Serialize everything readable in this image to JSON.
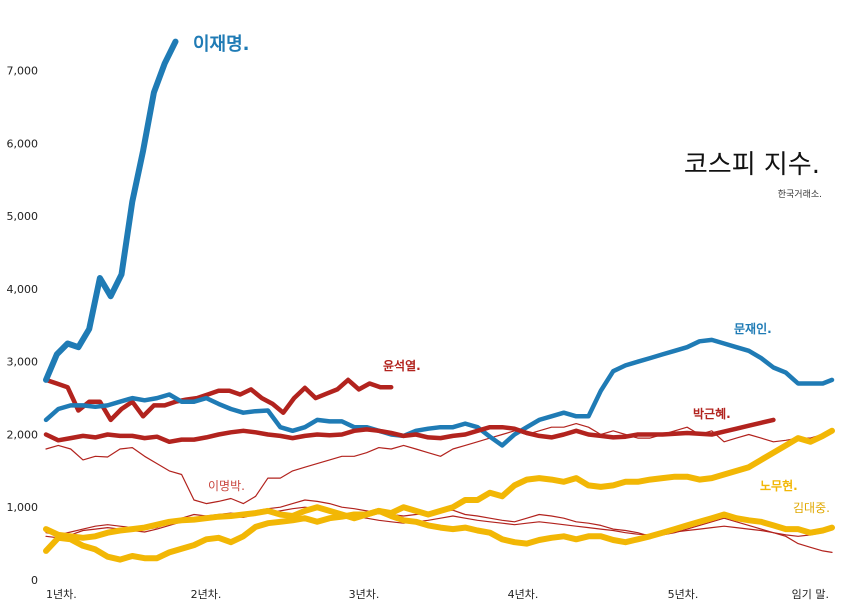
{
  "chart_data": {
    "type": "line",
    "title": "코스피 지수.",
    "subtitle": "한국거래소.",
    "xlabel": "",
    "ylabel": "",
    "ylim": [
      0,
      7500
    ],
    "yticks": [
      0,
      1000,
      2000,
      3000,
      4000,
      5000,
      6000,
      7000
    ],
    "ytick_labels": [
      "0",
      "1,000",
      "2,000",
      "3,000",
      "4,000",
      "5,000",
      "6,000",
      "7,000"
    ],
    "xlim": [
      1,
      6.1
    ],
    "xticks": [
      1,
      2,
      3,
      4,
      5,
      6
    ],
    "xtick_labels": [
      "1년차.",
      "2년차.",
      "3년차.",
      "4년차.",
      "5년차.",
      "임기 말."
    ],
    "grid": false,
    "colors": {
      "blue": "#1f7bb5",
      "red": "#b2231e",
      "yellow": "#f2b705"
    },
    "series": [
      {
        "name": "이재명.",
        "color": "#1f7bb5",
        "weight": "heavy",
        "x": [
          1.0,
          1.07,
          1.14,
          1.21,
          1.28,
          1.35,
          1.42,
          1.49,
          1.56,
          1.63,
          1.7,
          1.77,
          1.84
        ],
        "y": [
          2750,
          3100,
          3250,
          3200,
          3450,
          4150,
          3900,
          4200,
          5200,
          5900,
          6700,
          7100,
          7400
        ]
      },
      {
        "name": "윤석열.",
        "color": "#b2231e",
        "weight": "medium",
        "x": [
          1.0,
          1.07,
          1.14,
          1.21,
          1.28,
          1.35,
          1.42,
          1.49,
          1.56,
          1.63,
          1.7,
          1.77,
          1.84,
          1.91,
          1.98,
          2.05,
          2.12,
          2.19,
          2.26,
          2.33,
          2.4,
          2.47,
          2.54,
          2.61,
          2.68,
          2.75,
          2.82,
          2.89,
          2.96,
          3.03,
          3.1,
          3.17,
          3.24
        ],
        "y": [
          2750,
          2700,
          2650,
          2330,
          2450,
          2450,
          2200,
          2350,
          2450,
          2250,
          2400,
          2400,
          2450,
          2480,
          2500,
          2550,
          2600,
          2600,
          2550,
          2620,
          2500,
          2420,
          2300,
          2500,
          2640,
          2500,
          2560,
          2620,
          2750,
          2620,
          2700,
          2650,
          2650
        ]
      },
      {
        "name": "문재인.",
        "color": "#1f7bb5",
        "weight": "medium",
        "x": [
          1.0,
          1.08,
          1.16,
          1.24,
          1.32,
          1.4,
          1.48,
          1.56,
          1.64,
          1.72,
          1.8,
          1.88,
          1.96,
          2.04,
          2.12,
          2.2,
          2.28,
          2.36,
          2.44,
          2.52,
          2.6,
          2.68,
          2.76,
          2.84,
          2.92,
          3.0,
          3.08,
          3.16,
          3.24,
          3.32,
          3.4,
          3.48,
          3.56,
          3.64,
          3.72,
          3.8,
          3.88,
          3.96,
          4.04,
          4.12,
          4.2,
          4.28,
          4.36,
          4.44,
          4.52,
          4.6,
          4.68,
          4.76,
          4.84,
          4.92,
          5.0,
          5.08,
          5.16,
          5.24,
          5.32,
          5.4,
          5.48,
          5.56,
          5.64,
          5.72,
          5.8,
          5.88,
          5.96,
          6.04,
          6.1
        ],
        "y": [
          2200,
          2350,
          2400,
          2400,
          2380,
          2400,
          2450,
          2500,
          2470,
          2500,
          2550,
          2450,
          2450,
          2500,
          2420,
          2350,
          2300,
          2320,
          2330,
          2100,
          2050,
          2100,
          2200,
          2180,
          2180,
          2100,
          2100,
          2050,
          2000,
          1980,
          2050,
          2080,
          2100,
          2100,
          2150,
          2100,
          1970,
          1850,
          2000,
          2100,
          2200,
          2250,
          2300,
          2250,
          2250,
          2600,
          2870,
          2950,
          3000,
          3050,
          3100,
          3150,
          3200,
          3280,
          3300,
          3250,
          3200,
          3150,
          3050,
          2920,
          2850,
          2700,
          2700,
          2700,
          2750
        ]
      },
      {
        "name": "박근혜.",
        "color": "#b2231e",
        "weight": "medium",
        "x": [
          1.0,
          1.08,
          1.16,
          1.24,
          1.32,
          1.4,
          1.48,
          1.56,
          1.64,
          1.72,
          1.8,
          1.88,
          1.96,
          2.04,
          2.12,
          2.2,
          2.28,
          2.36,
          2.44,
          2.52,
          2.6,
          2.68,
          2.76,
          2.84,
          2.92,
          3.0,
          3.08,
          3.16,
          3.24,
          3.32,
          3.4,
          3.48,
          3.56,
          3.64,
          3.72,
          3.8,
          3.88,
          3.96,
          4.04,
          4.12,
          4.2,
          4.28,
          4.36,
          4.44,
          4.52,
          4.6,
          4.68,
          4.76,
          4.84,
          4.92,
          5.0,
          5.08,
          5.16,
          5.24,
          5.32,
          5.4,
          5.48,
          5.56,
          5.64,
          5.72
        ],
        "y": [
          2000,
          1920,
          1950,
          1980,
          1960,
          2000,
          1980,
          1980,
          1950,
          1970,
          1900,
          1930,
          1930,
          1960,
          2000,
          2030,
          2050,
          2030,
          2000,
          1980,
          1950,
          1980,
          2000,
          1990,
          2000,
          2050,
          2070,
          2050,
          2020,
          1980,
          2000,
          1960,
          1950,
          1980,
          2000,
          2050,
          2100,
          2100,
          2080,
          2020,
          1980,
          1960,
          2000,
          2050,
          2000,
          1980,
          1960,
          1970,
          2000,
          2000,
          2000,
          2010,
          2020,
          2010,
          2000,
          2040,
          2080,
          2120,
          2160,
          2200
        ]
      },
      {
        "name": "이명박.",
        "color": "#b2231e",
        "weight": "thin",
        "x": [
          1.0,
          1.08,
          1.16,
          1.24,
          1.32,
          1.4,
          1.48,
          1.56,
          1.64,
          1.72,
          1.8,
          1.88,
          1.96,
          2.04,
          2.12,
          2.2,
          2.28,
          2.36,
          2.44,
          2.52,
          2.6,
          2.68,
          2.76,
          2.84,
          2.92,
          3.0,
          3.08,
          3.16,
          3.24,
          3.32,
          3.4,
          3.48,
          3.56,
          3.64,
          3.72,
          3.8,
          3.88,
          3.96,
          4.04,
          4.12,
          4.2,
          4.28,
          4.36,
          4.44,
          4.52,
          4.6,
          4.68,
          4.76,
          4.84,
          4.92,
          5.0,
          5.08,
          5.16,
          5.24,
          5.32,
          5.4,
          5.48,
          5.56,
          5.64,
          5.72,
          5.8,
          5.88,
          5.96,
          6.04
        ],
        "y": [
          1800,
          1850,
          1800,
          1650,
          1700,
          1690,
          1800,
          1820,
          1700,
          1600,
          1500,
          1450,
          1100,
          1050,
          1080,
          1120,
          1050,
          1150,
          1400,
          1400,
          1500,
          1550,
          1600,
          1650,
          1700,
          1700,
          1750,
          1820,
          1800,
          1850,
          1800,
          1750,
          1700,
          1800,
          1850,
          1900,
          1950,
          2000,
          2050,
          2000,
          2050,
          2100,
          2100,
          2150,
          2100,
          2000,
          2050,
          2000,
          1950,
          1950,
          2000,
          2050,
          2100,
          2000,
          2050,
          1900,
          1950,
          2000,
          1950,
          1900,
          1920,
          1950,
          1950,
          2000
        ]
      },
      {
        "name": "노무현.",
        "color": "#f2b705",
        "weight": "heavy",
        "x": [
          1.0,
          1.08,
          1.16,
          1.24,
          1.32,
          1.4,
          1.48,
          1.56,
          1.64,
          1.72,
          1.8,
          1.88,
          1.96,
          2.04,
          2.12,
          2.2,
          2.28,
          2.36,
          2.44,
          2.52,
          2.6,
          2.68,
          2.76,
          2.84,
          2.92,
          3.0,
          3.08,
          3.16,
          3.24,
          3.32,
          3.4,
          3.48,
          3.56,
          3.64,
          3.72,
          3.8,
          3.88,
          3.96,
          4.04,
          4.12,
          4.2,
          4.28,
          4.36,
          4.44,
          4.52,
          4.6,
          4.68,
          4.76,
          4.84,
          4.92,
          5.0,
          5.08,
          5.16,
          5.24,
          5.32,
          5.4,
          5.48,
          5.56,
          5.64,
          5.72,
          5.8,
          5.88,
          5.96,
          6.04,
          6.1
        ],
        "y": [
          400,
          580,
          560,
          470,
          420,
          320,
          280,
          330,
          300,
          300,
          380,
          430,
          480,
          560,
          580,
          520,
          600,
          730,
          780,
          800,
          820,
          850,
          800,
          850,
          870,
          900,
          900,
          950,
          920,
          1000,
          950,
          900,
          950,
          1000,
          1100,
          1100,
          1200,
          1150,
          1300,
          1380,
          1400,
          1380,
          1350,
          1400,
          1300,
          1280,
          1300,
          1350,
          1350,
          1380,
          1400,
          1420,
          1420,
          1380,
          1400,
          1450,
          1500,
          1550,
          1650,
          1750,
          1850,
          1950,
          1900,
          1980,
          2050
        ]
      },
      {
        "name": "김대중.",
        "color": "#f2b705",
        "weight": "heavy",
        "x": [
          1.0,
          1.08,
          1.16,
          1.24,
          1.32,
          1.4,
          1.48,
          1.56,
          1.64,
          1.72,
          1.8,
          1.88,
          1.96,
          2.04,
          2.12,
          2.2,
          2.28,
          2.36,
          2.44,
          2.52,
          2.6,
          2.68,
          2.76,
          2.84,
          2.92,
          3.0,
          3.08,
          3.16,
          3.24,
          3.32,
          3.4,
          3.48,
          3.56,
          3.64,
          3.72,
          3.8,
          3.88,
          3.96,
          4.04,
          4.12,
          4.2,
          4.28,
          4.36,
          4.44,
          4.52,
          4.6,
          4.68,
          4.76,
          4.84,
          4.92,
          5.0,
          5.08,
          5.16,
          5.24,
          5.32,
          5.4,
          5.48,
          5.56,
          5.64,
          5.72,
          5.8,
          5.88,
          5.96,
          6.04,
          6.1
        ],
        "y": [
          700,
          620,
          600,
          580,
          600,
          650,
          680,
          700,
          720,
          760,
          800,
          820,
          830,
          850,
          870,
          880,
          900,
          920,
          950,
          900,
          880,
          950,
          1000,
          950,
          900,
          850,
          900,
          950,
          880,
          820,
          800,
          750,
          720,
          700,
          720,
          680,
          650,
          560,
          520,
          500,
          550,
          580,
          600,
          560,
          600,
          600,
          550,
          520,
          560,
          600,
          650,
          700,
          750,
          800,
          850,
          900,
          850,
          820,
          800,
          750,
          700,
          700,
          650,
          680,
          720
        ]
      },
      {
        "name": "",
        "color": "#b2231e",
        "weight": "thin",
        "x": [
          1.0,
          1.08,
          1.16,
          1.24,
          1.32,
          1.4,
          1.48,
          1.56,
          1.64,
          1.72,
          1.8,
          1.88,
          1.96,
          2.04,
          2.12,
          2.2,
          2.28,
          2.36,
          2.44,
          2.52,
          2.6,
          2.68,
          2.76,
          2.84,
          2.92,
          3.0,
          3.08,
          3.16,
          3.24,
          3.32,
          3.4,
          3.48,
          3.56,
          3.64,
          3.72,
          3.8,
          3.88,
          3.96,
          4.04,
          4.12,
          4.2,
          4.28,
          4.36,
          4.44,
          4.52,
          4.6,
          4.68,
          4.76,
          4.84,
          4.92,
          5.0,
          5.08,
          5.16,
          5.24,
          5.32,
          5.4,
          5.48,
          5.56,
          5.64,
          5.72,
          5.8,
          5.88,
          5.96,
          6.04,
          6.1
        ],
        "y": [
          650,
          620,
          660,
          700,
          740,
          760,
          740,
          720,
          700,
          720,
          780,
          850,
          900,
          880,
          900,
          920,
          900,
          950,
          980,
          1000,
          1050,
          1100,
          1080,
          1050,
          1000,
          980,
          950,
          920,
          900,
          880,
          900,
          920,
          940,
          960,
          900,
          880,
          850,
          820,
          800,
          850,
          900,
          880,
          850,
          800,
          780,
          750,
          700,
          680,
          650,
          600,
          620,
          650,
          700,
          750,
          800,
          850,
          800,
          750,
          700,
          650,
          600,
          500,
          450,
          400,
          380
        ]
      },
      {
        "name": "",
        "color": "#b2231e",
        "weight": "thin",
        "x": [
          1.0,
          1.08,
          1.16,
          1.24,
          1.32,
          1.4,
          1.48,
          1.56,
          1.64,
          1.72,
          1.8,
          1.88,
          1.96,
          2.04,
          2.12,
          2.2,
          2.28,
          2.36,
          2.44,
          2.52,
          2.6,
          2.68,
          2.76,
          2.84,
          2.92,
          3.0,
          3.08,
          3.16,
          3.24,
          3.32,
          3.4,
          3.48,
          3.56,
          3.64,
          3.72,
          3.8,
          3.88,
          3.96,
          4.04,
          4.12,
          4.2,
          4.28,
          4.36,
          4.44,
          4.52,
          4.6,
          4.68,
          4.76,
          4.84,
          4.92,
          5.0,
          5.08,
          5.16,
          5.24,
          5.32,
          5.4,
          5.48,
          5.56,
          5.64,
          5.72,
          5.8,
          5.88,
          5.96,
          6.04,
          6.1
        ],
        "y": [
          600,
          580,
          620,
          680,
          700,
          720,
          700,
          680,
          660,
          700,
          750,
          800,
          820,
          840,
          860,
          880,
          860,
          900,
          920,
          950,
          980,
          1000,
          980,
          950,
          900,
          870,
          850,
          820,
          800,
          780,
          800,
          820,
          850,
          880,
          850,
          820,
          800,
          780,
          760,
          780,
          800,
          780,
          760,
          740,
          720,
          700,
          680,
          650,
          630,
          620,
          640,
          660,
          680,
          700,
          720,
          740,
          720,
          700,
          680,
          650,
          620,
          600,
          620,
          650,
          700
        ]
      }
    ],
    "annotations": [
      "이재명.",
      "윤석열.",
      "문재인.",
      "박근혜.",
      "이명박.",
      "노무현.",
      "김대중."
    ]
  }
}
